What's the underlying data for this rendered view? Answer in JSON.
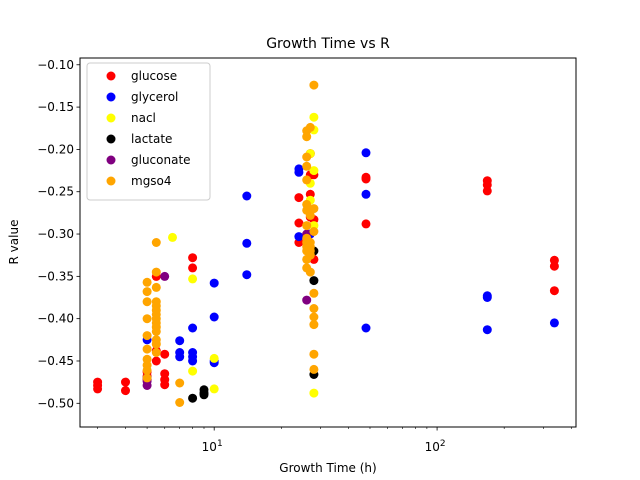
{
  "chart_data": {
    "type": "scatter",
    "title": "Growth Time vs R",
    "xlabel": "Growth Time (h)",
    "ylabel": "R value",
    "xscale": "log",
    "xlim": [
      2.5,
      420
    ],
    "ylim": [
      -0.528,
      -0.092
    ],
    "xticks": [
      {
        "value": 10,
        "base": "10",
        "exp": "1"
      },
      {
        "value": 100,
        "base": "10",
        "exp": "2"
      }
    ],
    "yticks": [
      -0.5,
      -0.45,
      -0.4,
      -0.35,
      -0.3,
      -0.25,
      -0.2,
      -0.15,
      -0.1
    ],
    "ytick_labels": [
      "−0.50",
      "−0.45",
      "−0.40",
      "−0.35",
      "−0.30",
      "−0.25",
      "−0.20",
      "−0.15",
      "−0.10"
    ],
    "grid": false,
    "legend_position": "top-left",
    "series": [
      {
        "name": "glucose",
        "color": "#ff0000",
        "points": [
          [
            3,
            -0.475
          ],
          [
            3,
            -0.479
          ],
          [
            3,
            -0.483
          ],
          [
            4,
            -0.475
          ],
          [
            4,
            -0.485
          ],
          [
            5,
            -0.463
          ],
          [
            5,
            -0.468
          ],
          [
            5,
            -0.472
          ],
          [
            5.5,
            -0.35
          ],
          [
            5.5,
            -0.438
          ],
          [
            5.5,
            -0.45
          ],
          [
            6,
            -0.442
          ],
          [
            6,
            -0.465
          ],
          [
            6,
            -0.472
          ],
          [
            6,
            -0.478
          ],
          [
            8,
            -0.328
          ],
          [
            8,
            -0.34
          ],
          [
            24,
            -0.257
          ],
          [
            24,
            -0.287
          ],
          [
            24,
            -0.31
          ],
          [
            27,
            -0.205
          ],
          [
            27,
            -0.23
          ],
          [
            27,
            -0.253
          ],
          [
            27,
            -0.28
          ],
          [
            27,
            -0.3
          ],
          [
            28,
            -0.23
          ],
          [
            28,
            -0.283
          ],
          [
            28,
            -0.33
          ],
          [
            48,
            -0.233
          ],
          [
            48,
            -0.235
          ],
          [
            48,
            -0.288
          ],
          [
            168,
            -0.237
          ],
          [
            168,
            -0.242
          ],
          [
            168,
            -0.249
          ],
          [
            336,
            -0.331
          ],
          [
            336,
            -0.338
          ],
          [
            336,
            -0.367
          ]
        ]
      },
      {
        "name": "glycerol",
        "color": "#0000ff",
        "points": [
          [
            5,
            -0.425
          ],
          [
            5,
            -0.47
          ],
          [
            7,
            -0.426
          ],
          [
            7,
            -0.44
          ],
          [
            7,
            -0.445
          ],
          [
            8,
            -0.411
          ],
          [
            8,
            -0.44
          ],
          [
            8,
            -0.445
          ],
          [
            8,
            -0.45
          ],
          [
            10,
            -0.358
          ],
          [
            10,
            -0.398
          ],
          [
            10,
            -0.45
          ],
          [
            10,
            -0.452
          ],
          [
            14,
            -0.255
          ],
          [
            14,
            -0.311
          ],
          [
            14,
            -0.348
          ],
          [
            24,
            -0.223
          ],
          [
            24,
            -0.227
          ],
          [
            24,
            -0.303
          ],
          [
            27,
            -0.3
          ],
          [
            48,
            -0.204
          ],
          [
            48,
            -0.253
          ],
          [
            48,
            -0.411
          ],
          [
            168,
            -0.373
          ],
          [
            168,
            -0.375
          ],
          [
            168,
            -0.413
          ],
          [
            336,
            -0.405
          ]
        ]
      },
      {
        "name": "nacl",
        "color": "#ffff00",
        "points": [
          [
            6.5,
            -0.304
          ],
          [
            8,
            -0.353
          ],
          [
            8,
            -0.462
          ],
          [
            10,
            -0.447
          ],
          [
            10,
            -0.483
          ],
          [
            27,
            -0.205
          ],
          [
            27,
            -0.24
          ],
          [
            27,
            -0.26
          ],
          [
            28,
            -0.162
          ],
          [
            28,
            -0.177
          ],
          [
            28,
            -0.225
          ],
          [
            28,
            -0.29
          ],
          [
            28,
            -0.488
          ]
        ]
      },
      {
        "name": "lactate",
        "color": "#000000",
        "points": [
          [
            8,
            -0.494
          ],
          [
            9,
            -0.484
          ],
          [
            9,
            -0.488
          ],
          [
            9,
            -0.49
          ],
          [
            28,
            -0.32
          ],
          [
            28,
            -0.355
          ],
          [
            28,
            -0.466
          ]
        ]
      },
      {
        "name": "gluconate",
        "color": "#800080",
        "points": [
          [
            5,
            -0.474
          ],
          [
            5,
            -0.479
          ],
          [
            6,
            -0.35
          ],
          [
            26,
            -0.378
          ],
          [
            26,
            -0.3
          ]
        ]
      },
      {
        "name": "mgso4",
        "color": "#ffa500",
        "points": [
          [
            5,
            -0.357
          ],
          [
            5,
            -0.368
          ],
          [
            5,
            -0.38
          ],
          [
            5,
            -0.4
          ],
          [
            5,
            -0.42
          ],
          [
            5,
            -0.436
          ],
          [
            5,
            -0.448
          ],
          [
            5,
            -0.455
          ],
          [
            5,
            -0.461
          ],
          [
            5,
            -0.47
          ],
          [
            5.5,
            -0.31
          ],
          [
            5.5,
            -0.345
          ],
          [
            5.5,
            -0.363
          ],
          [
            5.5,
            -0.38
          ],
          [
            5.5,
            -0.385
          ],
          [
            5.5,
            -0.39
          ],
          [
            5.5,
            -0.395
          ],
          [
            5.5,
            -0.4
          ],
          [
            5.5,
            -0.405
          ],
          [
            5.5,
            -0.41
          ],
          [
            5.5,
            -0.415
          ],
          [
            5.5,
            -0.425
          ],
          [
            5.5,
            -0.43
          ],
          [
            5.5,
            -0.44
          ],
          [
            7,
            -0.476
          ],
          [
            7,
            -0.499
          ],
          [
            26,
            -0.178
          ],
          [
            26,
            -0.185
          ],
          [
            26,
            -0.209
          ],
          [
            26,
            -0.22
          ],
          [
            26,
            -0.236
          ],
          [
            26,
            -0.265
          ],
          [
            26,
            -0.272
          ],
          [
            26,
            -0.29
          ],
          [
            26,
            -0.305
          ],
          [
            26,
            -0.31
          ],
          [
            26,
            -0.315
          ],
          [
            26,
            -0.32
          ],
          [
            26,
            -0.33
          ],
          [
            26,
            -0.34
          ],
          [
            27,
            -0.174
          ],
          [
            27,
            -0.278
          ],
          [
            27,
            -0.31
          ],
          [
            27,
            -0.315
          ],
          [
            27,
            -0.32
          ],
          [
            27,
            -0.325
          ],
          [
            27,
            -0.345
          ],
          [
            28,
            -0.124
          ],
          [
            28,
            -0.27
          ],
          [
            28,
            -0.297
          ],
          [
            28,
            -0.37
          ],
          [
            28,
            -0.388
          ],
          [
            28,
            -0.398
          ],
          [
            28,
            -0.407
          ],
          [
            28,
            -0.442
          ],
          [
            28,
            -0.46
          ]
        ]
      }
    ]
  }
}
